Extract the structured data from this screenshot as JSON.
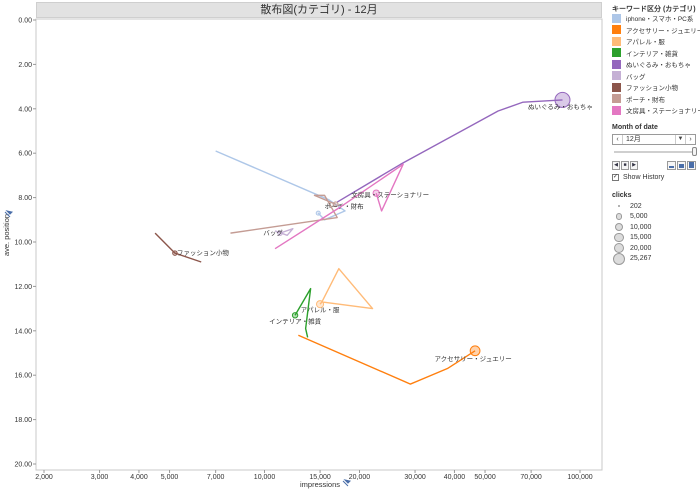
{
  "chart_data": {
    "type": "scatter",
    "title": "散布図(カテゴリ) - 12月",
    "xlabel": "impressions",
    "ylabel": "ave. position",
    "x_scale": "log",
    "x_ticks": [
      2000,
      3000,
      4000,
      5000,
      7000,
      10000,
      15000,
      20000,
      30000,
      40000,
      50000,
      70000,
      100000
    ],
    "x_tick_labels": [
      "2,000",
      "3,000",
      "4,000",
      "5,000",
      "7,000",
      "10,000",
      "15,000",
      "20,000",
      "30,000",
      "40,000",
      "50,000",
      "70,000",
      "100,000"
    ],
    "xlim": [
      2000,
      100000
    ],
    "y_ticks": [
      0,
      2,
      4,
      6,
      8,
      10,
      12,
      14,
      16,
      18,
      20
    ],
    "y_tick_labels": [
      "0.00",
      "2.00",
      "4.00",
      "6.00",
      "8.00",
      "10.00",
      "12.00",
      "14.00",
      "16.00",
      "18.00",
      "20.00"
    ],
    "ylim": [
      0,
      20
    ],
    "y_reversed": true,
    "grid": false,
    "series": [
      {
        "name": "iphone・スマホ・PC系",
        "color": "#aec7e8",
        "label": "",
        "path": [
          [
            7000,
            5.9
          ],
          [
            16000,
            8.1
          ],
          [
            18000,
            8.6
          ],
          [
            15500,
            9.0
          ],
          [
            14800,
            8.7
          ]
        ],
        "current": [
          14800,
          8.7
        ],
        "clicks": 202
      },
      {
        "name": "アクセサリー・ジュエリー",
        "color": "#ff7f0e",
        "label": "アクセサリー・ジュエリー",
        "path": [
          [
            12800,
            14.2
          ],
          [
            29000,
            16.4
          ],
          [
            38000,
            15.7
          ],
          [
            46500,
            14.9
          ]
        ],
        "current": [
          46500,
          14.9
        ],
        "clicks": 8000
      },
      {
        "name": "アパレル・服",
        "color": "#ffbb78",
        "label": "アパレル・服",
        "path": [
          [
            15200,
            12.7
          ],
          [
            17200,
            11.2
          ],
          [
            22000,
            13.0
          ],
          [
            15200,
            12.7
          ],
          [
            15000,
            12.8
          ]
        ],
        "current": [
          15000,
          12.8
        ],
        "clicks": 3000
      },
      {
        "name": "インテリア・雑貨",
        "color": "#2ca02c",
        "label": "インテリア・雑貨",
        "path": [
          [
            12500,
            13.3
          ],
          [
            14000,
            12.1
          ],
          [
            13500,
            13.9
          ],
          [
            13700,
            14.3
          ]
        ],
        "current": [
          12500,
          13.3
        ],
        "clicks": 1000
      },
      {
        "name": "ぬいぐるみ・おもちゃ",
        "color": "#9467bd",
        "label": "ぬいぐるみ・おもちゃ",
        "path": [
          [
            17000,
            8.2
          ],
          [
            27000,
            6.5
          ],
          [
            55000,
            4.1
          ],
          [
            66000,
            3.7
          ],
          [
            88000,
            3.6
          ]
        ],
        "current": [
          88000,
          3.6
        ],
        "clicks": 25267
      },
      {
        "name": "バッグ",
        "color": "#c5b0d5",
        "label": "バッグ",
        "path": [
          [
            10800,
            9.5
          ],
          [
            11800,
            9.7
          ],
          [
            12300,
            9.4
          ],
          [
            11200,
            9.6
          ]
        ],
        "current": [
          11200,
          9.6
        ],
        "clicks": 500
      },
      {
        "name": "ファッション小物",
        "color": "#8c564b",
        "label": "ファッション小物",
        "path": [
          [
            4500,
            9.6
          ],
          [
            5200,
            10.5
          ],
          [
            6300,
            10.9
          ]
        ],
        "current": [
          5200,
          10.5
        ],
        "clicks": 400
      },
      {
        "name": "ポーチ・財布",
        "color": "#c49c94",
        "label": "ポーチ・財布",
        "path": [
          [
            7800,
            9.6
          ],
          [
            17000,
            8.9
          ],
          [
            15500,
            7.9
          ],
          [
            14400,
            7.9
          ],
          [
            16800,
            8.3
          ]
        ],
        "current": [
          16800,
          8.3
        ],
        "clicks": 600
      },
      {
        "name": "文房具・ステーショナリー",
        "color": "#e377c2",
        "label": "文房具・ステーショナリー",
        "path": [
          [
            10800,
            10.3
          ],
          [
            17500,
            8.4
          ],
          [
            27500,
            6.5
          ],
          [
            23500,
            8.6
          ],
          [
            22600,
            7.8
          ]
        ],
        "current": [
          22600,
          7.8
        ],
        "clicks": 2000
      }
    ]
  },
  "legend": {
    "title": "キーワード区分 (カテゴリ)",
    "items": [
      {
        "label": "iphone・スマホ・PC系",
        "color": "#aec7e8"
      },
      {
        "label": "アクセサリー・ジュエリー",
        "color": "#ff7f0e"
      },
      {
        "label": "アパレル・服",
        "color": "#ffbb78"
      },
      {
        "label": "インテリア・雑貨",
        "color": "#2ca02c"
      },
      {
        "label": "ぬいぐるみ・おもちゃ",
        "color": "#9467bd"
      },
      {
        "label": "バッグ",
        "color": "#c5b0d5"
      },
      {
        "label": "ファッション小物",
        "color": "#8c564b"
      },
      {
        "label": "ポーチ・財布",
        "color": "#c49c94"
      },
      {
        "label": "文房具・ステーショナリー",
        "color": "#e377c2"
      }
    ]
  },
  "filter": {
    "title": "Month of date",
    "value": "12月",
    "prev_icon": "chevron-left-icon",
    "next_icon": "chevron-right-icon",
    "dropdown_icon": "chevron-down-icon",
    "show_history_label": "Show History",
    "show_history_checked": true
  },
  "size_legend": {
    "title": "clicks",
    "items": [
      {
        "label": "202",
        "value": 202
      },
      {
        "label": "5,000",
        "value": 5000
      },
      {
        "label": "10,000",
        "value": 10000
      },
      {
        "label": "15,000",
        "value": 15000
      },
      {
        "label": "20,000",
        "value": 20000
      },
      {
        "label": "25,267",
        "value": 25267
      }
    ]
  }
}
